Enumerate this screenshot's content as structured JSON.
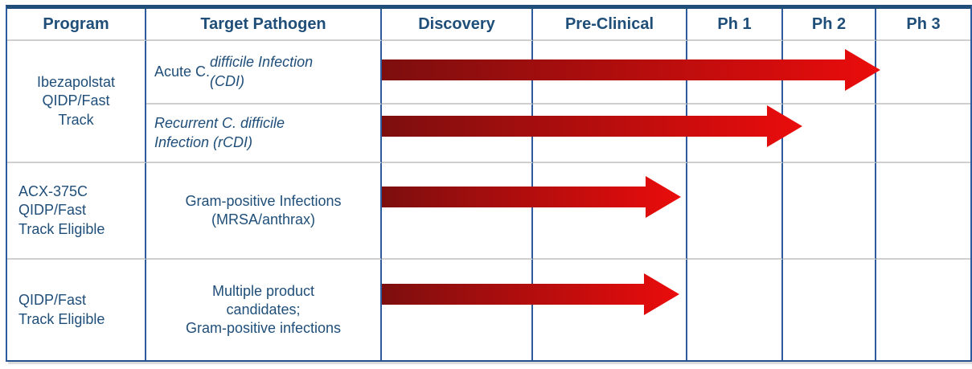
{
  "colors": {
    "text_blue": "#1f4e79",
    "border_blue": "#2e5b9e",
    "top_border_blue": "#1f4e79",
    "grid_gray": "#cfcfcf",
    "arrow_gradient_left": "#7d0e0e",
    "arrow_gradient_right": "#ea0c0c"
  },
  "table": {
    "headers": [
      "Program",
      "Target Pathogen",
      "Discovery",
      "Pre-Clinical",
      "Ph 1",
      "Ph 2",
      "Ph 3"
    ],
    "rows": [
      {
        "program": "Ibezapolstat\nQIDP/Fast\nTrack",
        "pathogen_prefix": "Acute C. ",
        "pathogen_italic": "difficile Infection\n(CDI)"
      },
      {
        "pathogen_italic": "Recurrent C. difficile\nInfection (rCDI)"
      },
      {
        "program": "ACX-375C\nQIDP/Fast\nTrack Eligible",
        "pathogen": "Gram-positive Infections\n(MRSA/anthrax)"
      },
      {
        "program": "QIDP/Fast\nTrack Eligible",
        "pathogen": "Multiple product\ncandidates;\nGram-positive infections"
      }
    ]
  },
  "chart_data": {
    "type": "table",
    "subtype": "pipeline-gantt",
    "phases": [
      "Discovery",
      "Pre-Clinical",
      "Ph 1",
      "Ph 2",
      "Ph 3"
    ],
    "legend_position": "none",
    "grid": true,
    "rows": [
      {
        "program": "Ibezapolstat QIDP/Fast Track",
        "indication": "Acute C. difficile Infection (CDI)",
        "start_phase": 0,
        "end_phase": 4.06,
        "progress_note": "arrow reaches start of Ph 3"
      },
      {
        "program": "Ibezapolstat QIDP/Fast Track",
        "indication": "Recurrent C. difficile Infection (rCDI)",
        "start_phase": 0,
        "end_phase": 3.22,
        "progress_note": "arrow reaches early Ph 2"
      },
      {
        "program": "ACX-375C QIDP/Fast Track Eligible",
        "indication": "Gram-positive Infections (MRSA/anthrax)",
        "start_phase": 0,
        "end_phase": 1.97,
        "progress_note": "arrow reaches end of Pre-Clinical"
      },
      {
        "program": "QIDP/Fast Track Eligible",
        "indication": "Multiple product candidates; Gram-positive infections",
        "start_phase": 0,
        "end_phase": 1.96,
        "progress_note": "arrow reaches end of Pre-Clinical"
      }
    ]
  }
}
